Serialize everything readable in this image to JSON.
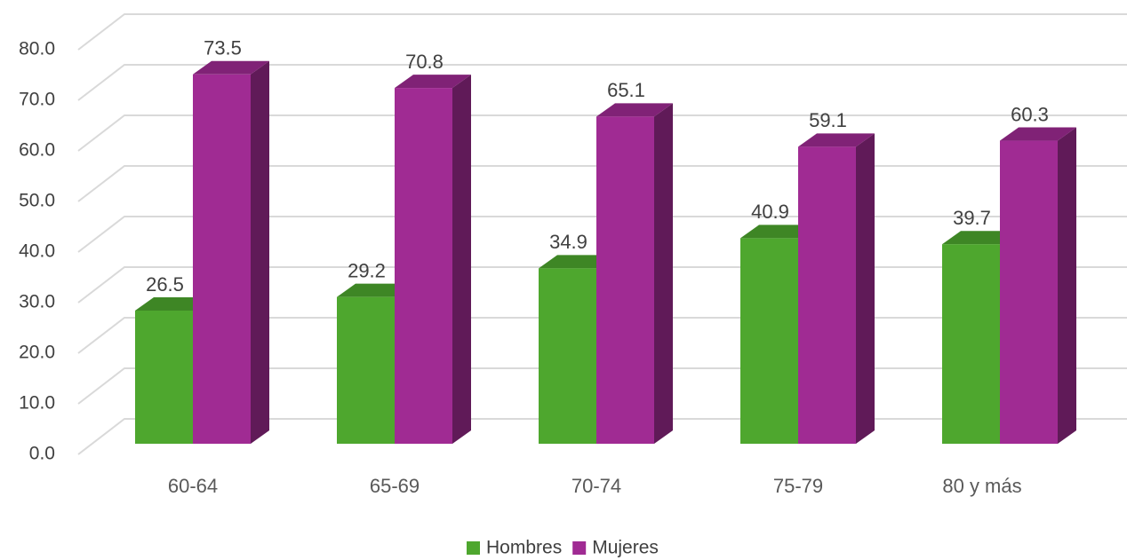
{
  "chart_data": {
    "type": "bar3d",
    "categories": [
      "60-64",
      "65-69",
      "70-74",
      "75-79",
      "80 y más"
    ],
    "series": [
      {
        "name": "Hombres",
        "color": "#4ea72e",
        "values": [
          26.5,
          29.2,
          34.9,
          40.9,
          39.7
        ]
      },
      {
        "name": "Mujeres",
        "color": "#a02b93",
        "values": [
          73.5,
          70.8,
          65.1,
          59.1,
          60.3
        ]
      }
    ],
    "ylim": [
      0,
      80
    ],
    "yticks": [
      {
        "value": 0,
        "label": "0.0"
      },
      {
        "value": 10,
        "label": "10.0"
      },
      {
        "value": 20,
        "label": "20.0"
      },
      {
        "value": 30,
        "label": "30.0"
      },
      {
        "value": 40,
        "label": "40.0"
      },
      {
        "value": 50,
        "label": "50.0"
      },
      {
        "value": 60,
        "label": "60.0"
      },
      {
        "value": 70,
        "label": "70.0"
      },
      {
        "value": 80,
        "label": "80.0"
      }
    ],
    "grid": true,
    "legend": "bottom"
  }
}
